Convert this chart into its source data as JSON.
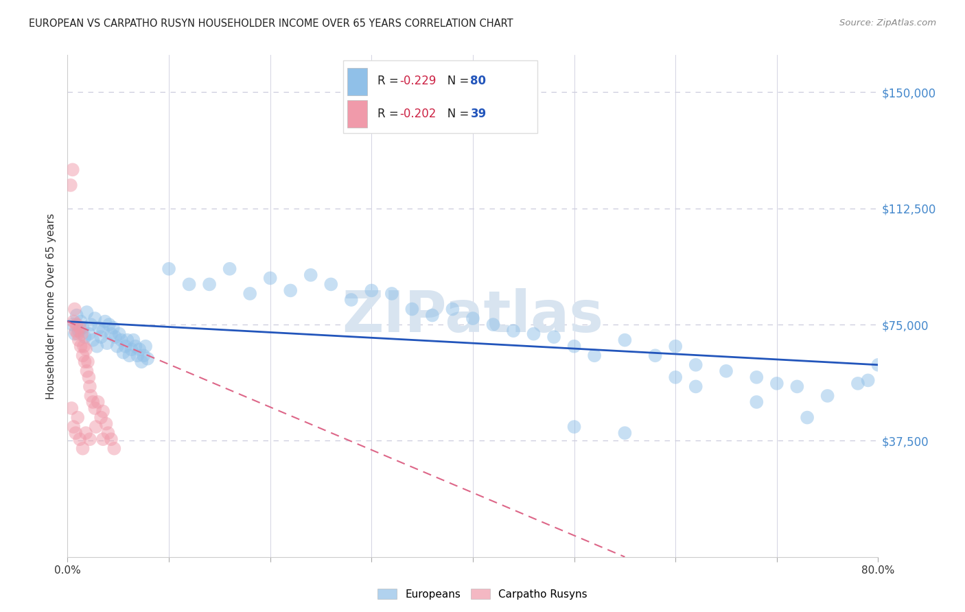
{
  "title": "EUROPEAN VS CARPATHO RUSYN HOUSEHOLDER INCOME OVER 65 YEARS CORRELATION CHART",
  "source": "Source: ZipAtlas.com",
  "ylabel": "Householder Income Over 65 years",
  "ytick_values": [
    37500,
    75000,
    112500,
    150000
  ],
  "ytick_labels": [
    "$37,500",
    "$75,000",
    "$112,500",
    "$150,000"
  ],
  "xlim": [
    0.0,
    0.8
  ],
  "ylim": [
    0,
    162000
  ],
  "legend_footer": [
    "Europeans",
    "Carpatho Rusyns"
  ],
  "blue_scatter_x": [
    0.005,
    0.007,
    0.009,
    0.011,
    0.013,
    0.015,
    0.017,
    0.019,
    0.021,
    0.023,
    0.025,
    0.027,
    0.029,
    0.031,
    0.033,
    0.035,
    0.037,
    0.039,
    0.041,
    0.043,
    0.045,
    0.047,
    0.049,
    0.051,
    0.053,
    0.055,
    0.057,
    0.059,
    0.061,
    0.063,
    0.065,
    0.067,
    0.069,
    0.071,
    0.073,
    0.075,
    0.077,
    0.079,
    0.1,
    0.12,
    0.14,
    0.16,
    0.18,
    0.2,
    0.22,
    0.24,
    0.26,
    0.28,
    0.3,
    0.32,
    0.34,
    0.36,
    0.38,
    0.4,
    0.42,
    0.44,
    0.46,
    0.48,
    0.5,
    0.52,
    0.55,
    0.58,
    0.6,
    0.62,
    0.65,
    0.68,
    0.7,
    0.72,
    0.75,
    0.78,
    0.79,
    0.8,
    0.5,
    0.55,
    0.6,
    0.62,
    0.68,
    0.73
  ],
  "blue_scatter_y": [
    75000,
    72000,
    78000,
    73000,
    76000,
    74000,
    71000,
    79000,
    72000,
    75000,
    70000,
    77000,
    68000,
    74000,
    71000,
    73000,
    76000,
    69000,
    75000,
    72000,
    74000,
    71000,
    68000,
    72000,
    70000,
    66000,
    68000,
    70000,
    65000,
    67000,
    70000,
    68000,
    65000,
    67000,
    63000,
    65000,
    68000,
    64000,
    93000,
    88000,
    88000,
    93000,
    85000,
    90000,
    86000,
    91000,
    88000,
    83000,
    86000,
    85000,
    80000,
    78000,
    80000,
    77000,
    75000,
    73000,
    72000,
    71000,
    68000,
    65000,
    70000,
    65000,
    68000,
    62000,
    60000,
    58000,
    56000,
    55000,
    52000,
    56000,
    57000,
    62000,
    42000,
    40000,
    58000,
    55000,
    50000,
    45000
  ],
  "pink_scatter_x": [
    0.003,
    0.005,
    0.006,
    0.007,
    0.008,
    0.009,
    0.01,
    0.011,
    0.012,
    0.013,
    0.014,
    0.015,
    0.016,
    0.017,
    0.018,
    0.019,
    0.02,
    0.021,
    0.022,
    0.023,
    0.025,
    0.027,
    0.03,
    0.033,
    0.035,
    0.038,
    0.04,
    0.043,
    0.046,
    0.004,
    0.006,
    0.008,
    0.01,
    0.012,
    0.015,
    0.018,
    0.022,
    0.028,
    0.035
  ],
  "pink_scatter_y": [
    120000,
    125000,
    76000,
    80000,
    73000,
    75000,
    72000,
    70000,
    74000,
    68000,
    72000,
    65000,
    68000,
    63000,
    67000,
    60000,
    63000,
    58000,
    55000,
    52000,
    50000,
    48000,
    50000,
    45000,
    47000,
    43000,
    40000,
    38000,
    35000,
    48000,
    42000,
    40000,
    45000,
    38000,
    35000,
    40000,
    38000,
    42000,
    38000
  ],
  "blue_line_x": [
    0.0,
    0.8
  ],
  "blue_line_y": [
    76000,
    62000
  ],
  "pink_line_x": [
    0.0,
    0.55
  ],
  "pink_line_y": [
    76000,
    0
  ],
  "background_color": "#ffffff",
  "grid_color": "#ccccdd",
  "title_color": "#222222",
  "source_color": "#888888",
  "blue_color": "#90c0e8",
  "pink_color": "#f09aaa",
  "blue_line_color": "#2255bb",
  "pink_line_color": "#dd6688",
  "right_axis_color": "#4488cc",
  "watermark_color": "#d8e4f0",
  "marker_size": 200
}
